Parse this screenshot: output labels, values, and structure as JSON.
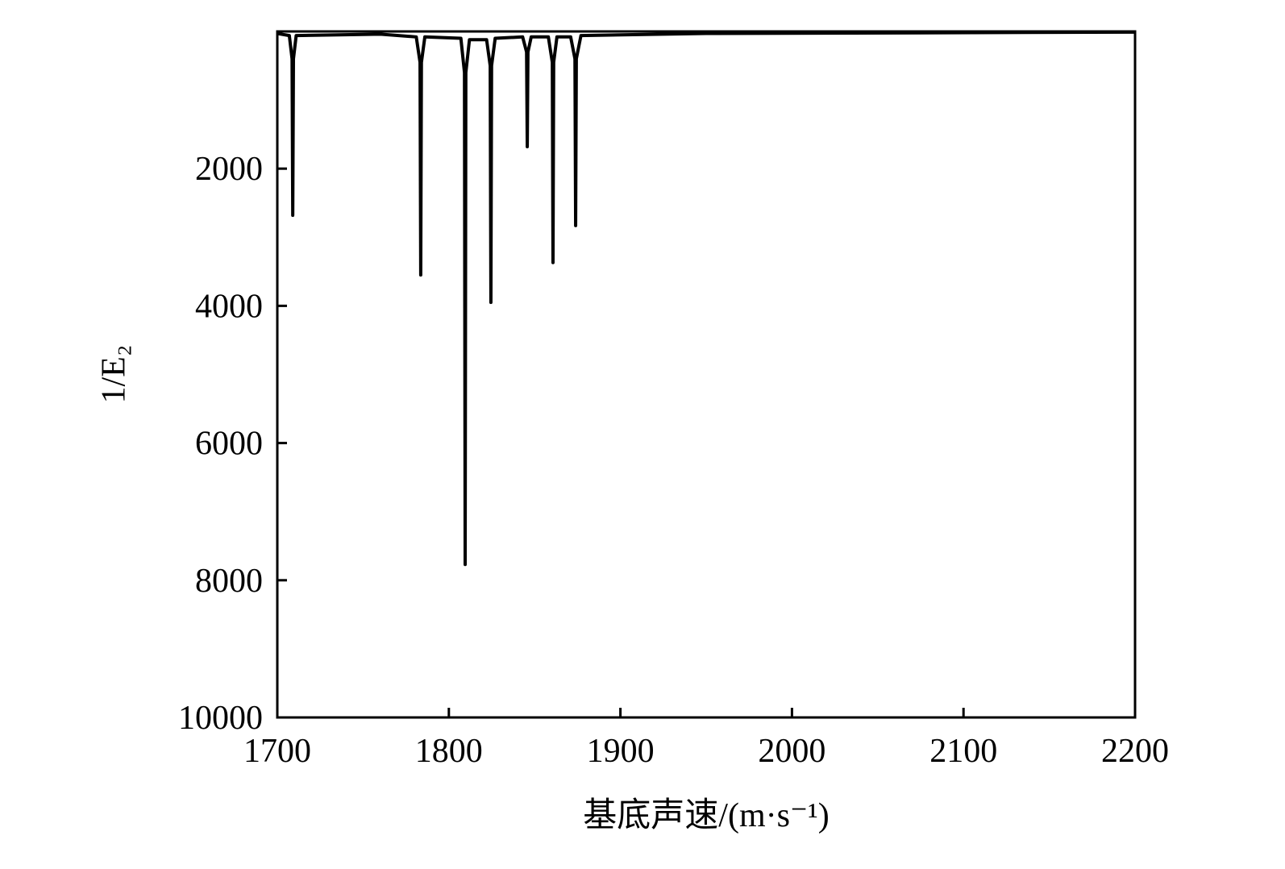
{
  "chart_data": {
    "type": "line",
    "x_label": "基底声速/(m·s⁻¹)",
    "y_label": "1/E₂",
    "xlim": [
      1700,
      2200
    ],
    "xticks": [
      1700,
      1800,
      1900,
      2000,
      2100,
      2200
    ],
    "ylim": [
      10000,
      0
    ],
    "yticks": [
      2000,
      4000,
      6000,
      8000,
      10000
    ],
    "y_inverted": true,
    "grid": false,
    "series": [
      {
        "color": "#000000",
        "x": [
          1700,
          1707,
          1708.6,
          1709,
          1709.4,
          1711,
          1760,
          1781,
          1783.2,
          1783.6,
          1784,
          1786,
          1807,
          1809.1,
          1809.5,
          1809.9,
          1812,
          1822,
          1824.1,
          1824.5,
          1824.9,
          1827,
          1843,
          1845.3,
          1845.7,
          1846.1,
          1848,
          1858,
          1860.3,
          1860.7,
          1861.1,
          1863,
          1871,
          1873.5,
          1873.9,
          1874.3,
          1877,
          1950,
          2200
        ],
        "values": [
          30,
          60,
          400,
          2680,
          400,
          60,
          40,
          80,
          450,
          3550,
          450,
          80,
          100,
          600,
          7770,
          600,
          120,
          120,
          500,
          3950,
          500,
          100,
          80,
          300,
          1680,
          300,
          80,
          80,
          450,
          3370,
          450,
          80,
          80,
          400,
          2830,
          400,
          60,
          30,
          10
        ]
      }
    ]
  }
}
